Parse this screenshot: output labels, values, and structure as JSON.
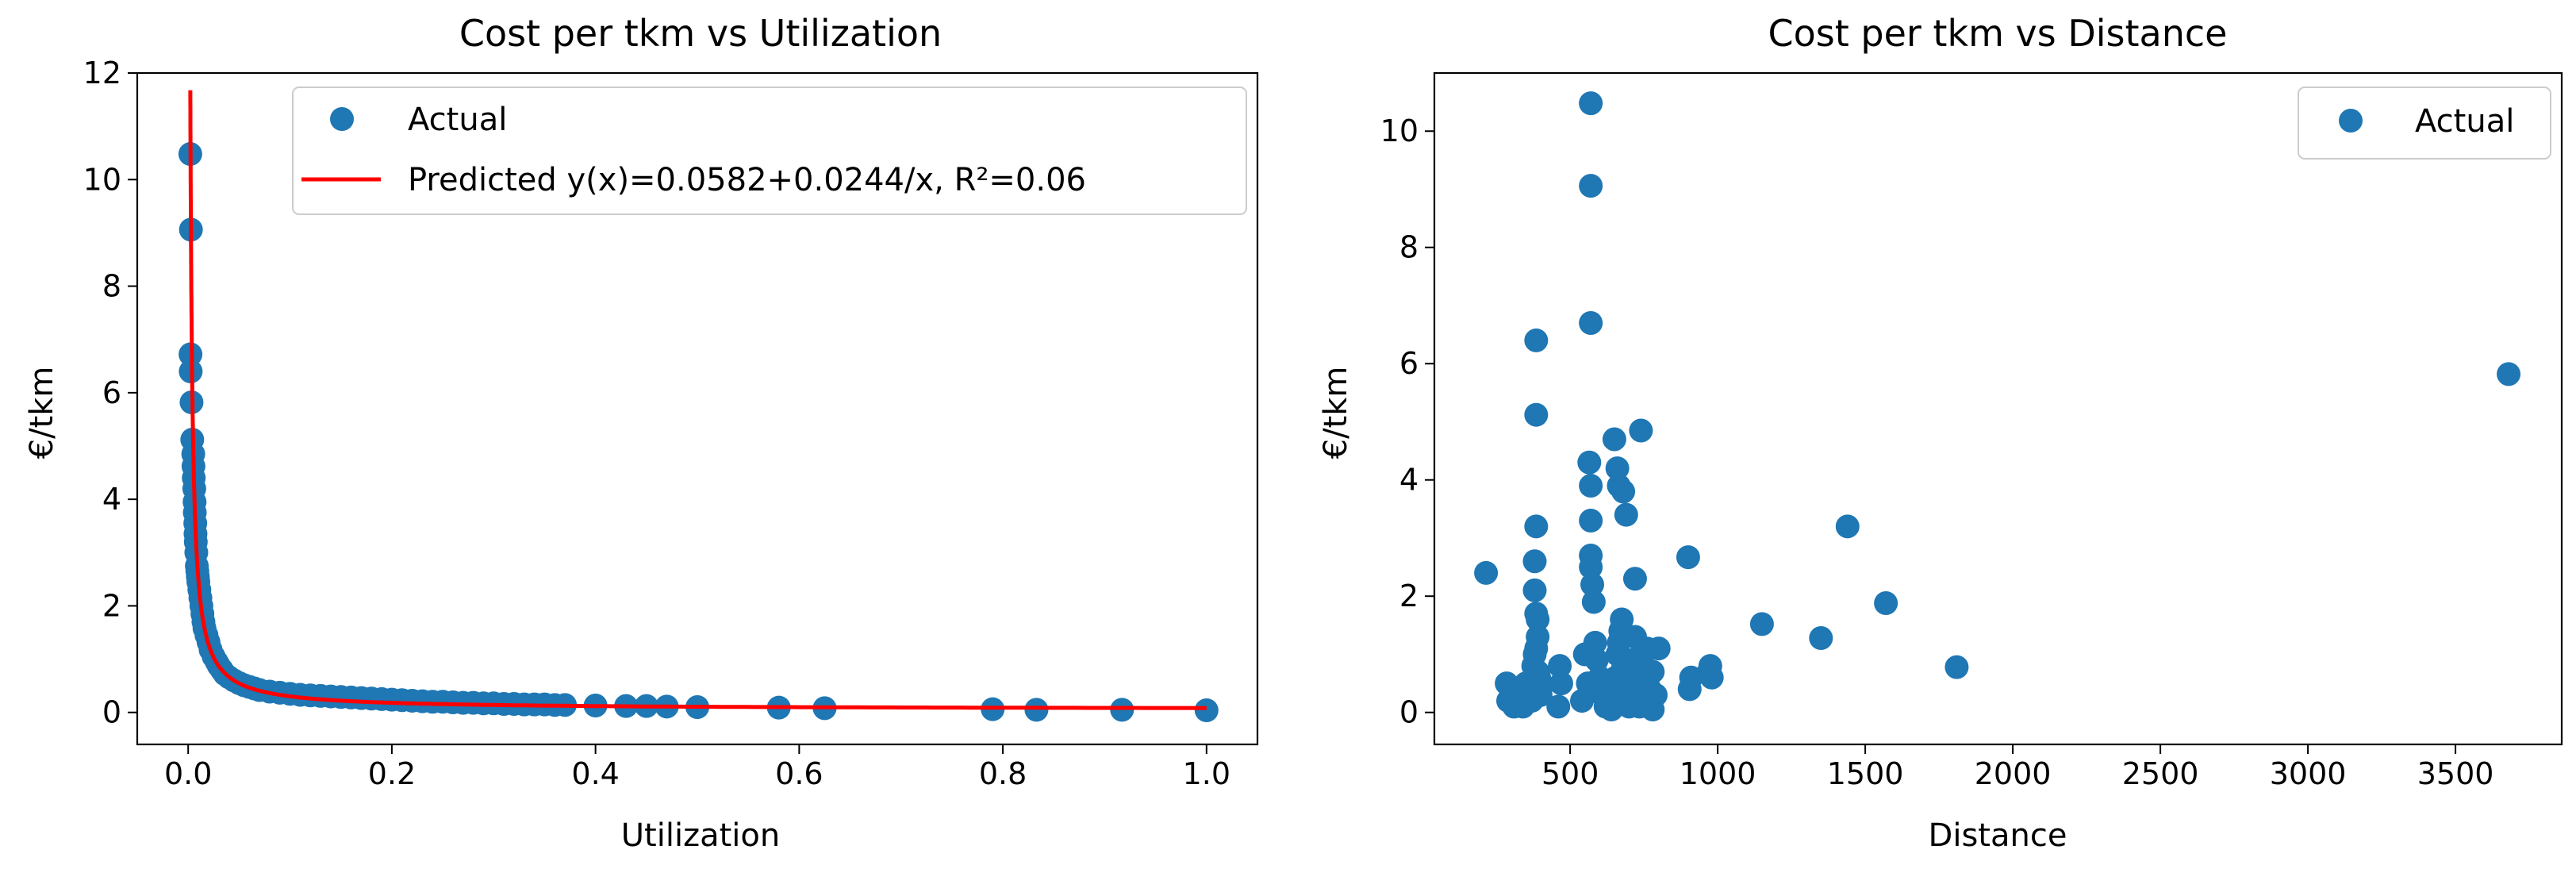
{
  "colors": {
    "point": "#1f77b4",
    "fit_line": "#ff0000",
    "axes": "#000000",
    "legend_border": "#cccccc"
  },
  "chart_data": [
    {
      "type": "scatter",
      "title": "Cost per tkm vs Utilization",
      "xlabel": "Utilization",
      "ylabel": "€/tkm",
      "xlim": [
        -0.05,
        1.05
      ],
      "ylim": [
        -0.6,
        12.0
      ],
      "xticks": [
        0.0,
        0.2,
        0.4,
        0.6,
        0.8,
        1.0
      ],
      "xtick_labels": [
        "0.0",
        "0.2",
        "0.4",
        "0.6",
        "0.8",
        "1.0"
      ],
      "yticks": [
        0,
        2,
        4,
        6,
        8,
        10,
        12
      ],
      "ytick_labels": [
        "0",
        "2",
        "4",
        "6",
        "8",
        "10",
        "12"
      ],
      "grid": false,
      "legend_position": "top-right",
      "series": [
        {
          "name": "Actual",
          "kind": "scatter",
          "x": [
            0.0021,
            0.0027,
            0.0023,
            0.0025,
            0.0033,
            0.004,
            0.005,
            0.0052,
            0.0055,
            0.006,
            0.0063,
            0.0065,
            0.007,
            0.0072,
            0.0075,
            0.008,
            0.0085,
            0.009,
            0.0095,
            0.01,
            0.011,
            0.012,
            0.013,
            0.014,
            0.015,
            0.016,
            0.018,
            0.02,
            0.022,
            0.025,
            0.028,
            0.03,
            0.033,
            0.036,
            0.04,
            0.045,
            0.05,
            0.055,
            0.06,
            0.065,
            0.07,
            0.08,
            0.09,
            0.1,
            0.11,
            0.12,
            0.13,
            0.14,
            0.15,
            0.16,
            0.17,
            0.18,
            0.19,
            0.2,
            0.21,
            0.22,
            0.23,
            0.24,
            0.25,
            0.26,
            0.27,
            0.28,
            0.29,
            0.3,
            0.31,
            0.32,
            0.33,
            0.34,
            0.35,
            0.36,
            0.37,
            0.4,
            0.43,
            0.45,
            0.47,
            0.5,
            0.58,
            0.625,
            0.79,
            0.833,
            0.917,
            1.0
          ],
          "y": [
            10.48,
            9.06,
            6.72,
            6.4,
            5.82,
            5.12,
            4.85,
            4.62,
            4.4,
            4.2,
            3.95,
            3.75,
            3.55,
            3.35,
            3.2,
            3.0,
            2.75,
            2.65,
            2.55,
            2.45,
            2.3,
            2.15,
            2.0,
            1.85,
            1.7,
            1.58,
            1.45,
            1.32,
            1.18,
            1.05,
            0.95,
            0.88,
            0.8,
            0.72,
            0.66,
            0.6,
            0.55,
            0.51,
            0.48,
            0.45,
            0.42,
            0.39,
            0.37,
            0.35,
            0.33,
            0.32,
            0.31,
            0.3,
            0.29,
            0.28,
            0.27,
            0.26,
            0.25,
            0.24,
            0.23,
            0.22,
            0.21,
            0.2,
            0.2,
            0.19,
            0.18,
            0.18,
            0.17,
            0.17,
            0.16,
            0.16,
            0.15,
            0.15,
            0.15,
            0.14,
            0.14,
            0.13,
            0.12,
            0.12,
            0.11,
            0.1,
            0.09,
            0.08,
            0.06,
            0.05,
            0.05,
            0.04
          ]
        },
        {
          "name": "Predicted",
          "kind": "line",
          "equation": "y(x)=0.0582+0.0244/x, R^2=0.06",
          "intercept": 0.0582,
          "coefficient": 0.0244,
          "x_start": 0.0021,
          "x_end": 1.0
        }
      ],
      "legend": [
        {
          "label": "Actual",
          "kind": "marker"
        },
        {
          "label": "Predicted y(x)=0.0582+0.0244/x, R²=0.06",
          "kind": "line"
        }
      ]
    },
    {
      "type": "scatter",
      "title": "Cost per tkm vs Distance",
      "xlabel": "Distance",
      "ylabel": "€/tkm",
      "xlim": [
        40,
        3860
      ],
      "ylim": [
        -0.55,
        11.0
      ],
      "xticks": [
        500,
        1000,
        1500,
        2000,
        2500,
        3000,
        3500
      ],
      "xtick_labels": [
        "500",
        "1000",
        "1500",
        "2000",
        "2500",
        "3000",
        "3500"
      ],
      "yticks": [
        0,
        2,
        4,
        6,
        8,
        10
      ],
      "ytick_labels": [
        "0",
        "2",
        "4",
        "6",
        "8",
        "10"
      ],
      "grid": false,
      "legend_position": "top-right",
      "series": [
        {
          "name": "Actual",
          "kind": "scatter",
          "x": [
            570,
            570,
            570,
            385,
            385,
            215,
            285,
            290,
            300,
            310,
            320,
            330,
            340,
            350,
            360,
            370,
            375,
            380,
            385,
            390,
            390,
            395,
            400,
            400,
            385,
            380,
            380,
            385,
            390,
            460,
            465,
            470,
            540,
            550,
            560,
            565,
            570,
            570,
            570,
            570,
            575,
            580,
            585,
            590,
            600,
            610,
            620,
            625,
            630,
            640,
            650,
            650,
            655,
            660,
            665,
            670,
            675,
            680,
            680,
            690,
            700,
            700,
            700,
            710,
            720,
            720,
            730,
            735,
            740,
            750,
            760,
            770,
            770,
            780,
            780,
            790,
            800,
            650,
            660,
            665,
            680,
            690,
            740,
            720,
            900,
            910,
            905,
            970,
            975,
            980,
            1150,
            1350,
            1440,
            1570,
            1810,
            3680
          ],
          "y": [
            10.48,
            9.06,
            6.7,
            6.4,
            5.12,
            2.4,
            0.5,
            0.2,
            0.3,
            0.1,
            0.4,
            0.2,
            0.1,
            0.5,
            0.3,
            0.2,
            0.8,
            1.0,
            1.1,
            1.3,
            1.6,
            0.6,
            0.4,
            0.3,
            3.2,
            2.6,
            2.1,
            1.7,
            0.7,
            0.1,
            0.8,
            0.5,
            0.2,
            1.0,
            0.5,
            4.3,
            3.9,
            3.3,
            2.7,
            2.5,
            2.2,
            1.9,
            1.2,
            0.9,
            0.6,
            0.3,
            0.1,
            0.4,
            0.2,
            0.05,
            0.1,
            0.3,
            0.6,
            1.0,
            1.2,
            1.4,
            1.6,
            0.8,
            0.5,
            0.2,
            0.1,
            0.4,
            0.7,
            0.9,
            1.3,
            0.5,
            0.3,
            0.1,
            0.6,
            0.8,
            1.1,
            0.4,
            0.2,
            0.7,
            0.05,
            0.3,
            1.1,
            4.7,
            4.2,
            3.9,
            3.8,
            3.4,
            4.85,
            2.3,
            2.67,
            0.6,
            0.4,
            0.7,
            0.8,
            0.6,
            1.52,
            1.28,
            3.2,
            1.88,
            0.78,
            5.82
          ]
        }
      ],
      "legend": [
        {
          "label": "Actual",
          "kind": "marker"
        }
      ]
    }
  ]
}
